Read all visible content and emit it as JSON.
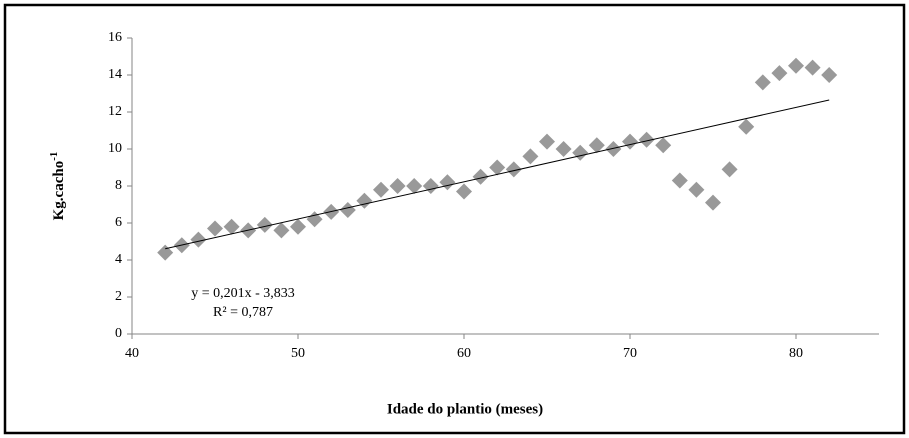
{
  "chart_data": {
    "type": "scatter",
    "x_label": "Idade do plantio (meses)",
    "y_label": "Kg.cacho",
    "y_label_exponent": "-1",
    "annotations": [
      "y = 0,201x - 3,833",
      "R² = 0,787"
    ],
    "color": "#999999",
    "x": [
      42,
      43,
      44,
      45,
      46,
      47,
      48,
      49,
      50,
      51,
      52,
      53,
      54,
      55,
      56,
      57,
      58,
      59,
      60,
      61,
      62,
      63,
      64,
      65,
      66,
      67,
      68,
      69,
      70,
      71,
      72,
      73,
      74,
      75,
      76,
      77,
      78,
      79,
      80,
      81,
      82
    ],
    "values": [
      4.4,
      4.8,
      5.1,
      5.7,
      5.8,
      5.6,
      5.9,
      5.6,
      5.8,
      6.2,
      6.6,
      6.7,
      7.2,
      7.8,
      8.0,
      8.0,
      8.0,
      8.2,
      7.7,
      8.5,
      9.0,
      8.9,
      9.6,
      10.4,
      10.0,
      9.8,
      10.2,
      10.0,
      10.4,
      10.5,
      10.2,
      8.3,
      7.8,
      7.1,
      8.9,
      11.2,
      13.6,
      14.1,
      14.5,
      14.4,
      14.0
    ],
    "trendline": {
      "x": [
        42,
        82
      ],
      "values": [
        4.609,
        12.649
      ],
      "color": "#000000"
    },
    "xlim": [
      40,
      85
    ],
    "xticks": [
      40,
      50,
      60,
      70,
      80
    ],
    "ylim": [
      0,
      16
    ],
    "yticks": [
      0,
      2,
      4,
      6,
      8,
      10,
      12,
      14,
      16
    ]
  }
}
